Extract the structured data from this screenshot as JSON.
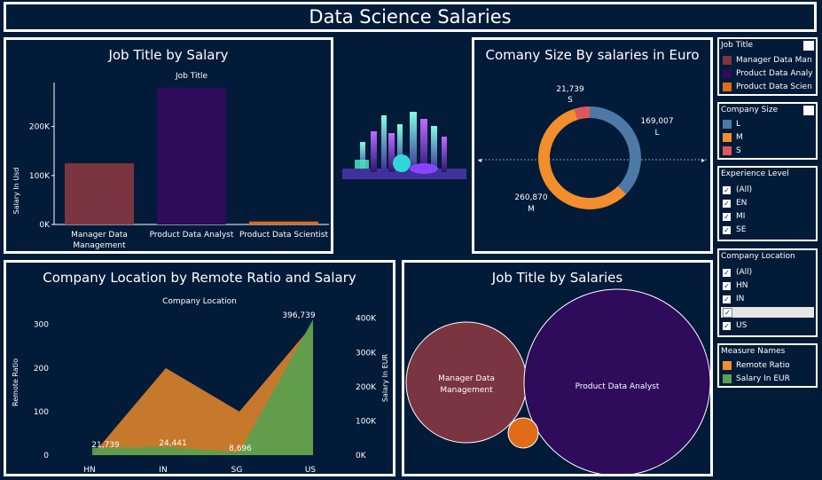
{
  "header": {
    "title": "Data Science Salaries"
  },
  "panel1": {
    "title": "Job Title by Salary",
    "col_header": "Job Title",
    "ylabel": "Salary In Usd",
    "yticks": [
      "200K",
      "100K",
      "0K"
    ],
    "categories": [
      "Manager Data Management",
      "Product Data Analyst",
      "Product Data Scientist"
    ]
  },
  "panel2": {
    "title": "Comany Size By salaries in Euro",
    "labels": [
      {
        "value": "21,739",
        "name": "S"
      },
      {
        "value": "169,007",
        "name": "L"
      },
      {
        "value": "260,870",
        "name": "M"
      }
    ]
  },
  "panel3": {
    "title": "Company Location by Remote Ratio and Salary",
    "col_header": "Company Location",
    "ylabel_left": "Remote Ratio",
    "ylabel_right": "Salary In EUR",
    "left_ticks": [
      "300",
      "200",
      "100",
      "0"
    ],
    "right_ticks": [
      "400K",
      "300K",
      "200K",
      "100K",
      "0K"
    ],
    "categories": [
      "HN",
      "IN",
      "SG",
      "US"
    ],
    "data_labels": [
      "21,739",
      "24,441",
      "8,696",
      "396,739"
    ]
  },
  "panel4": {
    "title": "Job Title by Salaries",
    "bubble_labels": [
      "Manager Data Management",
      "Product Data Analyst"
    ]
  },
  "legends": {
    "job_title": {
      "header": "Job Title",
      "items": [
        "Manager Data Man",
        "Product Data Analy",
        "Product Data Scien"
      ]
    },
    "company_size": {
      "header": "Company Size",
      "items": [
        "L",
        "M",
        "S"
      ]
    },
    "experience": {
      "header": "Experience Level",
      "items": [
        "(All)",
        "EN",
        "MI",
        "SE"
      ]
    },
    "location": {
      "header": "Company Location",
      "items": [
        "(All)",
        "HN",
        "IN",
        "SG",
        "US"
      ]
    },
    "measures": {
      "header": "Measure Names",
      "items": [
        "Remote Ratio",
        "Salary In EUR"
      ]
    }
  },
  "colors": {
    "manager": "#7a3540",
    "analyst": "#2f0b5c",
    "scientist": "#e06b18",
    "L": "#4e79a7",
    "M": "#f28e2b",
    "S": "#e15759",
    "remote": "#f28e2b",
    "salary": "#59a14f"
  },
  "chart_data": [
    {
      "type": "bar",
      "title": "Job Title by Salary",
      "xlabel": "Job Title",
      "ylabel": "Salary In Usd",
      "categories": [
        "Manager Data Management",
        "Product Data Analyst",
        "Product Data Scientist"
      ],
      "values": [
        125000,
        280000,
        6000
      ],
      "ylim": [
        0,
        290000
      ]
    },
    {
      "type": "pie",
      "title": "Comany Size By salaries in Euro",
      "categories": [
        "L",
        "M",
        "S"
      ],
      "values": [
        169007,
        260870,
        21739
      ]
    },
    {
      "type": "area",
      "title": "Company Location by Remote Ratio and Salary",
      "xlabel": "Company Location",
      "categories": [
        "HN",
        "IN",
        "SG",
        "US"
      ],
      "series": [
        {
          "name": "Remote Ratio",
          "values": [
            0,
            200,
            100,
            300
          ],
          "ylim": [
            0,
            330
          ]
        },
        {
          "name": "Salary In EUR",
          "values": [
            21739,
            24441,
            8696,
            396739
          ],
          "ylim": [
            0,
            420000
          ]
        }
      ]
    },
    {
      "type": "scatter",
      "title": "Job Title by Salaries",
      "categories": [
        "Manager Data Management",
        "Product Data Analyst",
        "Product Data Scientist"
      ],
      "values": [
        125000,
        280000,
        6000
      ]
    }
  ]
}
